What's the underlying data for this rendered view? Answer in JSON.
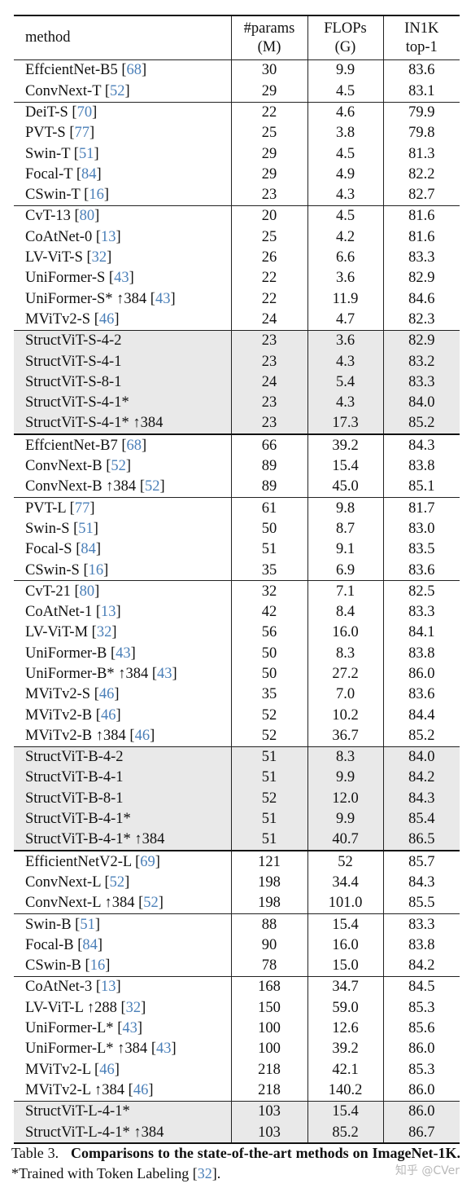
{
  "table": {
    "headers": {
      "method": "method",
      "params": [
        "#params",
        "(M)"
      ],
      "flops": [
        "FLOPs",
        "(G)"
      ],
      "acc": [
        "IN1K",
        "top-1"
      ]
    },
    "groups": [
      {
        "ours": false,
        "heavy": false,
        "rows": [
          {
            "method": "EffcientNet-B5",
            "ref": "68",
            "params": "30",
            "flops": "9.9",
            "acc": "83.6"
          },
          {
            "method": "ConvNext-T",
            "ref": "52",
            "params": "29",
            "flops": "4.5",
            "acc": "83.1"
          }
        ]
      },
      {
        "ours": false,
        "heavy": false,
        "rows": [
          {
            "method": "DeiT-S",
            "ref": "70",
            "params": "22",
            "flops": "4.6",
            "acc": "79.9"
          },
          {
            "method": "PVT-S",
            "ref": "77",
            "params": "25",
            "flops": "3.8",
            "acc": "79.8"
          },
          {
            "method": "Swin-T",
            "ref": "51",
            "params": "29",
            "flops": "4.5",
            "acc": "81.3"
          },
          {
            "method": "Focal-T",
            "ref": "84",
            "params": "29",
            "flops": "4.9",
            "acc": "82.2"
          },
          {
            "method": "CSwin-T",
            "ref": "16",
            "params": "23",
            "flops": "4.3",
            "acc": "82.7"
          }
        ]
      },
      {
        "ours": false,
        "heavy": false,
        "rows": [
          {
            "method": "CvT-13",
            "ref": "80",
            "params": "20",
            "flops": "4.5",
            "acc": "81.6"
          },
          {
            "method": "CoAtNet-0",
            "ref": "13",
            "params": "25",
            "flops": "4.2",
            "acc": "81.6"
          },
          {
            "method": "LV-ViT-S",
            "ref": "32",
            "params": "26",
            "flops": "6.6",
            "acc": "83.3"
          },
          {
            "method": "UniFormer-S",
            "ref": "43",
            "params": "22",
            "flops": "3.6",
            "acc": "82.9"
          },
          {
            "method": "UniFormer-S* ↑384",
            "ref": "43",
            "params": "22",
            "flops": "11.9",
            "acc": "84.6"
          },
          {
            "method": "MViTv2-S",
            "ref": "46",
            "params": "24",
            "flops": "4.7",
            "acc": "82.3"
          }
        ]
      },
      {
        "ours": true,
        "heavy": false,
        "rows": [
          {
            "method": "StructViT-S-4-2",
            "ref": "",
            "params": "23",
            "flops": "3.6",
            "acc": "82.9"
          },
          {
            "method": "StructViT-S-4-1",
            "ref": "",
            "params": "23",
            "flops": "4.3",
            "acc": "83.2"
          },
          {
            "method": "StructViT-S-8-1",
            "ref": "",
            "params": "24",
            "flops": "5.4",
            "acc": "83.3"
          },
          {
            "method": "StructViT-S-4-1*",
            "ref": "",
            "params": "23",
            "flops": "4.3",
            "acc": "84.0"
          },
          {
            "method": "StructViT-S-4-1* ↑384",
            "ref": "",
            "params": "23",
            "flops": "17.3",
            "acc": "85.2",
            "best": true
          }
        ]
      },
      {
        "ours": false,
        "heavy": true,
        "rows": [
          {
            "method": "EffcientNet-B7",
            "ref": "68",
            "params": "66",
            "flops": "39.2",
            "acc": "84.3"
          },
          {
            "method": "ConvNext-B",
            "ref": "52",
            "params": "89",
            "flops": "15.4",
            "acc": "83.8"
          },
          {
            "method": "ConvNext-B ↑384",
            "ref": "52",
            "params": "89",
            "flops": "45.0",
            "acc": "85.1"
          }
        ]
      },
      {
        "ours": false,
        "heavy": false,
        "rows": [
          {
            "method": "PVT-L",
            "ref": "77",
            "params": "61",
            "flops": "9.8",
            "acc": "81.7"
          },
          {
            "method": "Swin-S",
            "ref": "51",
            "params": "50",
            "flops": "8.7",
            "acc": "83.0"
          },
          {
            "method": "Focal-S",
            "ref": "84",
            "params": "51",
            "flops": "9.1",
            "acc": "83.5"
          },
          {
            "method": "CSwin-S",
            "ref": "16",
            "params": "35",
            "flops": "6.9",
            "acc": "83.6"
          }
        ]
      },
      {
        "ours": false,
        "heavy": false,
        "rows": [
          {
            "method": "CvT-21",
            "ref": "80",
            "params": "32",
            "flops": "7.1",
            "acc": "82.5"
          },
          {
            "method": "CoAtNet-1",
            "ref": "13",
            "params": "42",
            "flops": "8.4",
            "acc": "83.3"
          },
          {
            "method": "LV-ViT-M",
            "ref": "32",
            "params": "56",
            "flops": "16.0",
            "acc": "84.1"
          },
          {
            "method": "UniFormer-B",
            "ref": "43",
            "params": "50",
            "flops": "8.3",
            "acc": "83.8"
          },
          {
            "method": "UniFormer-B* ↑384",
            "ref": "43",
            "params": "50",
            "flops": "27.2",
            "acc": "86.0"
          },
          {
            "method": "MViTv2-S",
            "ref": "46",
            "params": "35",
            "flops": "7.0",
            "acc": "83.6"
          },
          {
            "method": "MViTv2-B",
            "ref": "46",
            "params": "52",
            "flops": "10.2",
            "acc": "84.4"
          },
          {
            "method": "MViTv2-B ↑384",
            "ref": "46",
            "params": "52",
            "flops": "36.7",
            "acc": "85.2"
          }
        ]
      },
      {
        "ours": true,
        "heavy": false,
        "rows": [
          {
            "method": "StructViT-B-4-2",
            "ref": "",
            "params": "51",
            "flops": "8.3",
            "acc": "84.0"
          },
          {
            "method": "StructViT-B-4-1",
            "ref": "",
            "params": "51",
            "flops": "9.9",
            "acc": "84.2"
          },
          {
            "method": "StructViT-B-8-1",
            "ref": "",
            "params": "52",
            "flops": "12.0",
            "acc": "84.3"
          },
          {
            "method": "StructViT-B-4-1*",
            "ref": "",
            "params": "51",
            "flops": "9.9",
            "acc": "85.4"
          },
          {
            "method": "StructViT-B-4-1* ↑384",
            "ref": "",
            "params": "51",
            "flops": "40.7",
            "acc": "86.5",
            "best": true
          }
        ]
      },
      {
        "ours": false,
        "heavy": true,
        "rows": [
          {
            "method": "EfficientNetV2-L",
            "ref": "69",
            "params": "121",
            "flops": "52",
            "acc": "85.7"
          },
          {
            "method": "ConvNext-L",
            "ref": "52",
            "params": "198",
            "flops": "34.4",
            "acc": "84.3"
          },
          {
            "method": "ConvNext-L ↑384",
            "ref": "52",
            "params": "198",
            "flops": "101.0",
            "acc": "85.5"
          }
        ]
      },
      {
        "ours": false,
        "heavy": false,
        "rows": [
          {
            "method": "Swin-B",
            "ref": "51",
            "params": "88",
            "flops": "15.4",
            "acc": "83.3"
          },
          {
            "method": "Focal-B",
            "ref": "84",
            "params": "90",
            "flops": "16.0",
            "acc": "83.8"
          },
          {
            "method": "CSwin-B",
            "ref": "16",
            "params": "78",
            "flops": "15.0",
            "acc": "84.2"
          }
        ]
      },
      {
        "ours": false,
        "heavy": false,
        "rows": [
          {
            "method": "CoAtNet-3",
            "ref": "13",
            "params": "168",
            "flops": "34.7",
            "acc": "84.5"
          },
          {
            "method": "LV-ViT-L ↑288",
            "ref": "32",
            "params": "150",
            "flops": "59.0",
            "acc": "85.3"
          },
          {
            "method": "UniFormer-L*",
            "ref": "43",
            "params": "100",
            "flops": "12.6",
            "acc": "85.6"
          },
          {
            "method": "UniFormer-L* ↑384",
            "ref": "43",
            "params": "100",
            "flops": "39.2",
            "acc": "86.0"
          },
          {
            "method": "MViTv2-L",
            "ref": "46",
            "params": "218",
            "flops": "42.1",
            "acc": "85.3"
          },
          {
            "method": "MViTv2-L ↑384",
            "ref": "46",
            "params": "218",
            "flops": "140.2",
            "acc": "86.0"
          }
        ]
      },
      {
        "ours": true,
        "heavy": false,
        "rows": [
          {
            "method": "StructViT-L-4-1*",
            "ref": "",
            "params": "103",
            "flops": "15.4",
            "acc": "86.0"
          },
          {
            "method": "StructViT-L-4-1* ↑384",
            "ref": "",
            "params": "103",
            "flops": "85.2",
            "acc": "86.7",
            "best": true
          }
        ]
      }
    ]
  },
  "caption": {
    "lead": "Table 3.",
    "bold": "Comparisons to the state-of-the-art methods on ImageNet-1K.",
    "note": "*Trained with Token Labeling",
    "ref": "32",
    "end": "."
  },
  "watermark": "知乎 @CVer",
  "colors": {
    "ref": "#4a7fb8",
    "ours_bg": "#e9e9e9"
  }
}
